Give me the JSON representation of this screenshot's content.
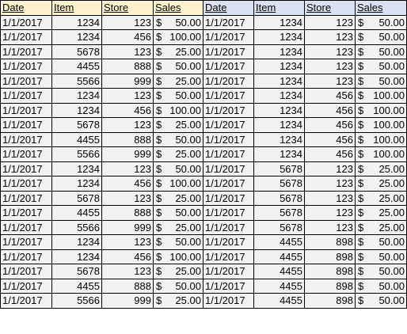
{
  "headers": [
    "Date",
    "Item",
    "Store",
    "Sales",
    "Date",
    "Item",
    "Store",
    "Sales"
  ],
  "currency_symbol": "$",
  "colors": {
    "left_header_bg": "#fff2cc",
    "right_header_bg": "#d9e1f2",
    "cell_bg": "#f2f2f2",
    "border": "#000000"
  },
  "rows": [
    [
      "1/1/2017",
      "1234",
      "123",
      "50.00",
      "1/1/2017",
      "1234",
      "123",
      "50.00"
    ],
    [
      "1/1/2017",
      "1234",
      "456",
      "100.00",
      "1/1/2017",
      "1234",
      "123",
      "50.00"
    ],
    [
      "1/1/2017",
      "5678",
      "123",
      "25.00",
      "1/1/2017",
      "1234",
      "123",
      "50.00"
    ],
    [
      "1/1/2017",
      "4455",
      "888",
      "50.00",
      "1/1/2017",
      "1234",
      "123",
      "50.00"
    ],
    [
      "1/1/2017",
      "5566",
      "999",
      "25.00",
      "1/1/2017",
      "1234",
      "123",
      "50.00"
    ],
    [
      "1/1/2017",
      "1234",
      "123",
      "50.00",
      "1/1/2017",
      "1234",
      "456",
      "100.00"
    ],
    [
      "1/1/2017",
      "1234",
      "456",
      "100.00",
      "1/1/2017",
      "1234",
      "456",
      "100.00"
    ],
    [
      "1/1/2017",
      "5678",
      "123",
      "25.00",
      "1/1/2017",
      "1234",
      "456",
      "100.00"
    ],
    [
      "1/1/2017",
      "4455",
      "888",
      "50.00",
      "1/1/2017",
      "1234",
      "456",
      "100.00"
    ],
    [
      "1/1/2017",
      "5566",
      "999",
      "25.00",
      "1/1/2017",
      "1234",
      "456",
      "100.00"
    ],
    [
      "1/1/2017",
      "1234",
      "123",
      "50.00",
      "1/1/2017",
      "5678",
      "123",
      "25.00"
    ],
    [
      "1/1/2017",
      "1234",
      "456",
      "100.00",
      "1/1/2017",
      "5678",
      "123",
      "25.00"
    ],
    [
      "1/1/2017",
      "5678",
      "123",
      "25.00",
      "1/1/2017",
      "5678",
      "123",
      "25.00"
    ],
    [
      "1/1/2017",
      "4455",
      "888",
      "50.00",
      "1/1/2017",
      "5678",
      "123",
      "25.00"
    ],
    [
      "1/1/2017",
      "5566",
      "999",
      "25.00",
      "1/1/2017",
      "5678",
      "123",
      "25.00"
    ],
    [
      "1/1/2017",
      "1234",
      "123",
      "50.00",
      "1/1/2017",
      "4455",
      "898",
      "50.00"
    ],
    [
      "1/1/2017",
      "1234",
      "456",
      "100.00",
      "1/1/2017",
      "4455",
      "898",
      "50.00"
    ],
    [
      "1/1/2017",
      "5678",
      "123",
      "25.00",
      "1/1/2017",
      "4455",
      "898",
      "50.00"
    ],
    [
      "1/1/2017",
      "4455",
      "888",
      "50.00",
      "1/1/2017",
      "4455",
      "898",
      "50.00"
    ],
    [
      "1/1/2017",
      "5566",
      "999",
      "25.00",
      "1/1/2017",
      "4455",
      "898",
      "50.00"
    ]
  ]
}
